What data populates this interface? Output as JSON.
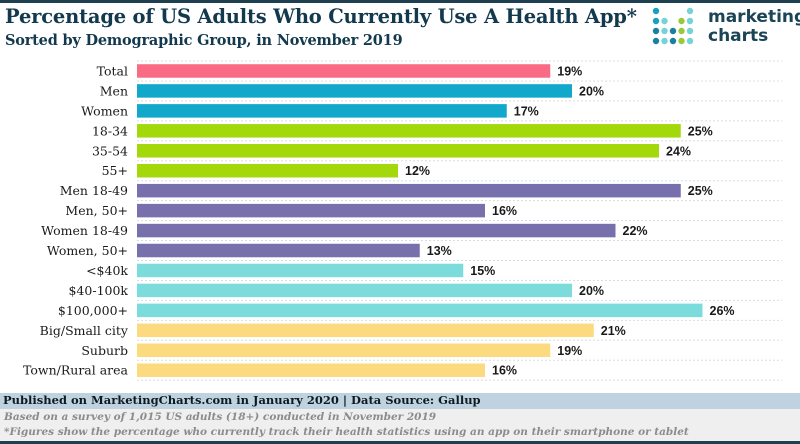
{
  "header": {
    "title": "Percentage of US Adults Who Currently Use A Health App*",
    "subtitle": "Sorted by Demographic Group, in November 2019"
  },
  "logo": {
    "line1": "marketing",
    "line2": "charts",
    "colors": [
      "#1a9fc0",
      "#74d3d6",
      "#98c93c",
      "#1a7fa0"
    ]
  },
  "footer": {
    "published": "Published on MarketingCharts.com in January 2020 | Data Source: Gallup",
    "note1": "Based on a survey of 1,015 US adults (18+) conducted in November 2019",
    "note2": "*Figures show the percentage who currently track their health statistics using an app on their smartphone or tablet"
  },
  "chart_data": {
    "type": "bar",
    "orientation": "horizontal",
    "title": "Percentage of US Adults Who Currently Use A Health App*",
    "subtitle": "Sorted by Demographic Group, in November 2019",
    "xlabel": "",
    "ylabel": "",
    "xlim": [
      0,
      26
    ],
    "grid": true,
    "legend": "none",
    "value_suffix": "%",
    "categories": [
      "Total",
      "Men",
      "Women",
      "18-34",
      "35-54",
      "55+",
      "Men 18-49",
      "Men, 50+",
      "Women 18-49",
      "Women, 50+",
      "<$40k",
      "$40-100k",
      "$100,000+",
      "Big/Small city",
      "Suburb",
      "Town/Rural area"
    ],
    "values": [
      19,
      20,
      17,
      25,
      24,
      12,
      25,
      16,
      22,
      13,
      15,
      20,
      26,
      21,
      19,
      16
    ],
    "groups": [
      "total",
      "gender",
      "gender",
      "age",
      "age",
      "age",
      "gender-age",
      "gender-age",
      "gender-age",
      "gender-age",
      "income",
      "income",
      "income",
      "location",
      "location",
      "location"
    ],
    "group_colors": {
      "total": "#fa6b85",
      "gender": "#12a8cb",
      "age": "#a3d80b",
      "gender-age": "#7770ad",
      "income": "#7cdcdc",
      "location": "#fbda80"
    }
  }
}
